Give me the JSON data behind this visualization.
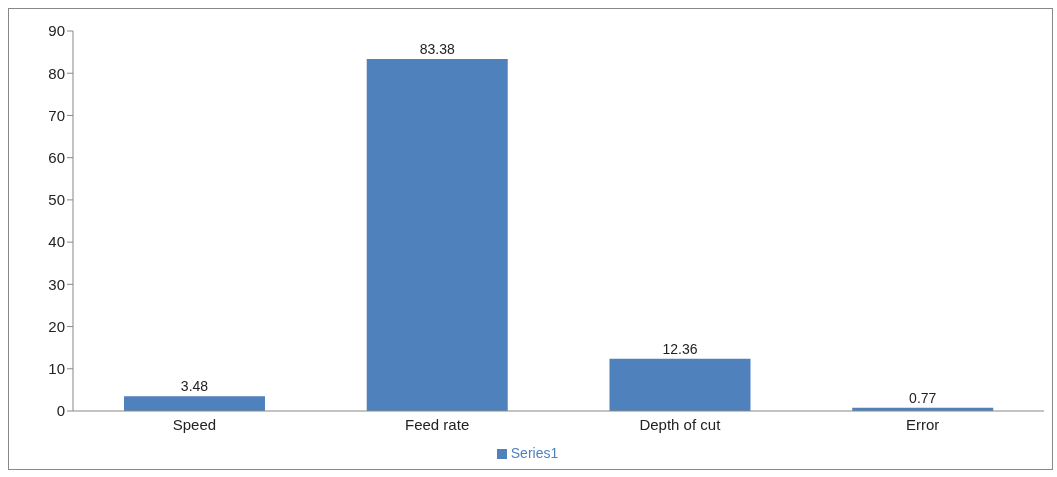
{
  "chart_data": {
    "type": "bar",
    "categories": [
      "Speed",
      "Feed rate",
      "Depth of cut",
      "Error"
    ],
    "series": [
      {
        "name": "Series1",
        "color": "#4f81bd",
        "values": [
          3.48,
          83.38,
          12.36,
          0.77
        ]
      }
    ],
    "ylim": [
      0,
      90
    ],
    "yticks": [
      0,
      10,
      20,
      30,
      40,
      50,
      60,
      70,
      80,
      90
    ],
    "grid": false,
    "legend": "bottom",
    "data_labels": true
  }
}
